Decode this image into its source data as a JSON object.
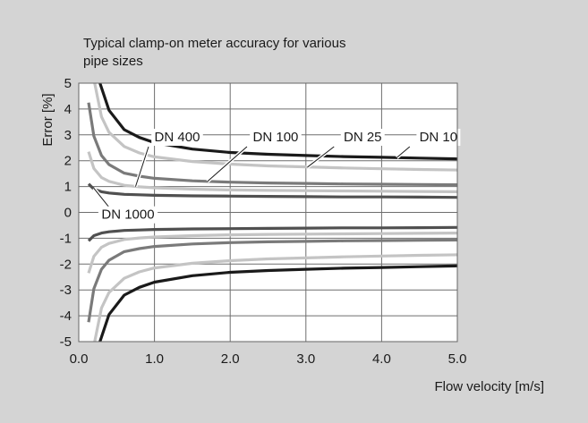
{
  "chart_data": {
    "type": "line",
    "title_lines": [
      "Typical clamp-on meter accuracy for various",
      "pipe sizes"
    ],
    "xlabel": "Flow velocity [m/s]",
    "ylabel": "Error [%]",
    "xlim": [
      0,
      5
    ],
    "ylim": [
      -5,
      5
    ],
    "x_ticks": [
      "0.0",
      "1.0",
      "2.0",
      "3.0",
      "4.0",
      "5.0"
    ],
    "y_ticks": [
      "5",
      "4",
      "3",
      "2",
      "1",
      "0",
      "-1",
      "-2",
      "-3",
      "-4",
      "-5"
    ],
    "grid": true,
    "series": [
      {
        "name": "DN 10",
        "color": "#1a1a1a",
        "x": [
          0.28,
          0.4,
          0.6,
          0.8,
          1.0,
          1.5,
          2.0,
          2.5,
          3.0,
          3.5,
          4.0,
          4.5,
          5.0
        ],
        "upper": [
          5.0,
          3.95,
          3.2,
          2.9,
          2.7,
          2.45,
          2.32,
          2.25,
          2.2,
          2.16,
          2.13,
          2.1,
          2.07
        ],
        "lower": [
          -5.0,
          -3.95,
          -3.2,
          -2.9,
          -2.7,
          -2.45,
          -2.32,
          -2.25,
          -2.2,
          -2.16,
          -2.13,
          -2.1,
          -2.07
        ]
      },
      {
        "name": "DN 25",
        "color": "#c4c4c4",
        "x": [
          0.21,
          0.3,
          0.4,
          0.6,
          0.8,
          1.0,
          1.5,
          2.0,
          2.5,
          3.0,
          3.5,
          4.0,
          4.5,
          5.0
        ],
        "upper": [
          5.0,
          3.7,
          3.1,
          2.55,
          2.3,
          2.15,
          1.97,
          1.87,
          1.8,
          1.76,
          1.72,
          1.69,
          1.66,
          1.64
        ],
        "lower": [
          -5.0,
          -3.7,
          -3.1,
          -2.55,
          -2.3,
          -2.15,
          -1.97,
          -1.87,
          -1.8,
          -1.76,
          -1.72,
          -1.69,
          -1.66,
          -1.64
        ]
      },
      {
        "name": "DN 100",
        "color": "#7a7a7a",
        "x": [
          0.13,
          0.2,
          0.3,
          0.4,
          0.6,
          0.8,
          1.0,
          1.5,
          2.0,
          2.5,
          3.0,
          3.5,
          4.0,
          4.5,
          5.0
        ],
        "upper": [
          4.25,
          2.95,
          2.2,
          1.85,
          1.52,
          1.4,
          1.32,
          1.22,
          1.17,
          1.14,
          1.12,
          1.1,
          1.09,
          1.08,
          1.07
        ],
        "lower": [
          -4.25,
          -2.95,
          -2.2,
          -1.85,
          -1.52,
          -1.4,
          -1.32,
          -1.22,
          -1.17,
          -1.14,
          -1.12,
          -1.1,
          -1.09,
          -1.08,
          -1.07
        ]
      },
      {
        "name": "DN 400",
        "color": "#c4c4c4",
        "x": [
          0.13,
          0.2,
          0.3,
          0.4,
          0.6,
          0.8,
          1.0,
          1.5,
          2.0,
          2.5,
          3.0,
          3.5,
          4.0,
          4.5,
          5.0
        ],
        "upper": [
          2.35,
          1.7,
          1.35,
          1.2,
          1.05,
          0.99,
          0.95,
          0.9,
          0.87,
          0.85,
          0.84,
          0.83,
          0.82,
          0.81,
          0.8
        ],
        "lower": [
          -2.35,
          -1.7,
          -1.35,
          -1.2,
          -1.05,
          -0.99,
          -0.95,
          -0.9,
          -0.87,
          -0.85,
          -0.84,
          -0.83,
          -0.82,
          -0.81,
          -0.8
        ]
      },
      {
        "name": "DN 1000",
        "color": "#505050",
        "x": [
          0.13,
          0.2,
          0.3,
          0.4,
          0.6,
          0.8,
          1.0,
          1.5,
          2.0,
          2.5,
          3.0,
          3.5,
          4.0,
          4.5,
          5.0
        ],
        "upper": [
          1.1,
          0.9,
          0.8,
          0.75,
          0.7,
          0.68,
          0.66,
          0.64,
          0.63,
          0.62,
          0.61,
          0.6,
          0.6,
          0.59,
          0.58
        ],
        "lower": [
          -1.1,
          -0.9,
          -0.8,
          -0.75,
          -0.7,
          -0.68,
          -0.66,
          -0.64,
          -0.63,
          -0.62,
          -0.61,
          -0.6,
          -0.6,
          -0.59,
          -0.58
        ]
      }
    ],
    "annotations": [
      {
        "label": "DN 400",
        "text_at": [
          1.3,
          2.75
        ],
        "points_to": [
          0.75,
          1.0
        ]
      },
      {
        "label": "DN 100",
        "text_at": [
          2.6,
          2.75
        ],
        "points_to": [
          1.7,
          1.2
        ]
      },
      {
        "label": "DN 25",
        "text_at": [
          3.75,
          2.75
        ],
        "points_to": [
          3.02,
          1.75
        ]
      },
      {
        "label": "DN 10",
        "text_at": [
          4.75,
          2.75
        ],
        "points_to": [
          4.2,
          2.12
        ]
      },
      {
        "label": "DN 1000",
        "text_at": [
          0.65,
          -0.25
        ],
        "points_to": [
          0.2,
          0.93
        ]
      }
    ]
  }
}
